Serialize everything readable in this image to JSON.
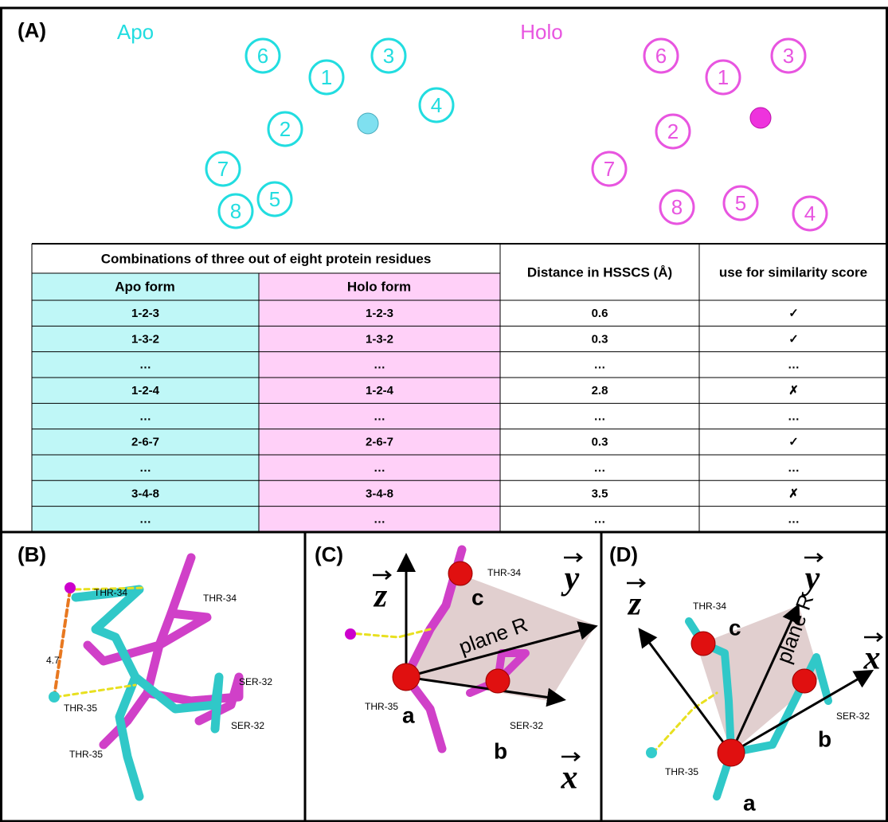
{
  "panel_a": {
    "label": "(A)",
    "apo": {
      "title": "Apo",
      "residues": [
        "6",
        "1",
        "3",
        "4",
        "2",
        "7",
        "5",
        "8"
      ]
    },
    "holo": {
      "title": "Holo",
      "residues": [
        "6",
        "1",
        "3",
        "2",
        "7",
        "8",
        "5",
        "4"
      ]
    }
  },
  "table": {
    "group_header": "Combinations of three out of eight protein residues",
    "headers": [
      "Apo form",
      "Holo form",
      "Distance in HSSCS (Å)",
      "use for similarity score"
    ],
    "rows": [
      [
        "1-2-3",
        "1-2-3",
        "0.6",
        "✓"
      ],
      [
        "1-3-2",
        "1-3-2",
        "0.3",
        "✓"
      ],
      [
        "…",
        "…",
        "…",
        "…"
      ],
      [
        "1-2-4",
        "1-2-4",
        "2.8",
        "✗"
      ],
      [
        "…",
        "…",
        "…",
        "…"
      ],
      [
        "2-6-7",
        "2-6-7",
        "0.3",
        "✓"
      ],
      [
        "…",
        "…",
        "…",
        "…"
      ],
      [
        "3-4-8",
        "3-4-8",
        "3.5",
        "✗"
      ],
      [
        "…",
        "…",
        "…",
        "…"
      ]
    ]
  },
  "panel_b": {
    "label": "(B)",
    "labels": [
      "THR-34",
      "THR-34",
      "4.7",
      "SER-32",
      "THR-35",
      "SER-32",
      "THR-35"
    ]
  },
  "panel_c": {
    "label": "(C)",
    "z": "z",
    "y": "y",
    "x": "x",
    "plane": "plane R",
    "points": [
      "a",
      "b",
      "c"
    ],
    "labels": [
      "THR-34",
      "THR-35",
      "SER-32"
    ]
  },
  "panel_d": {
    "label": "(D)",
    "z": "z",
    "y": "y",
    "x": "x",
    "plane": "plane R",
    "points": [
      "a",
      "b",
      "c"
    ],
    "labels": [
      "THR-34",
      "THR-35",
      "SER-32"
    ]
  }
}
